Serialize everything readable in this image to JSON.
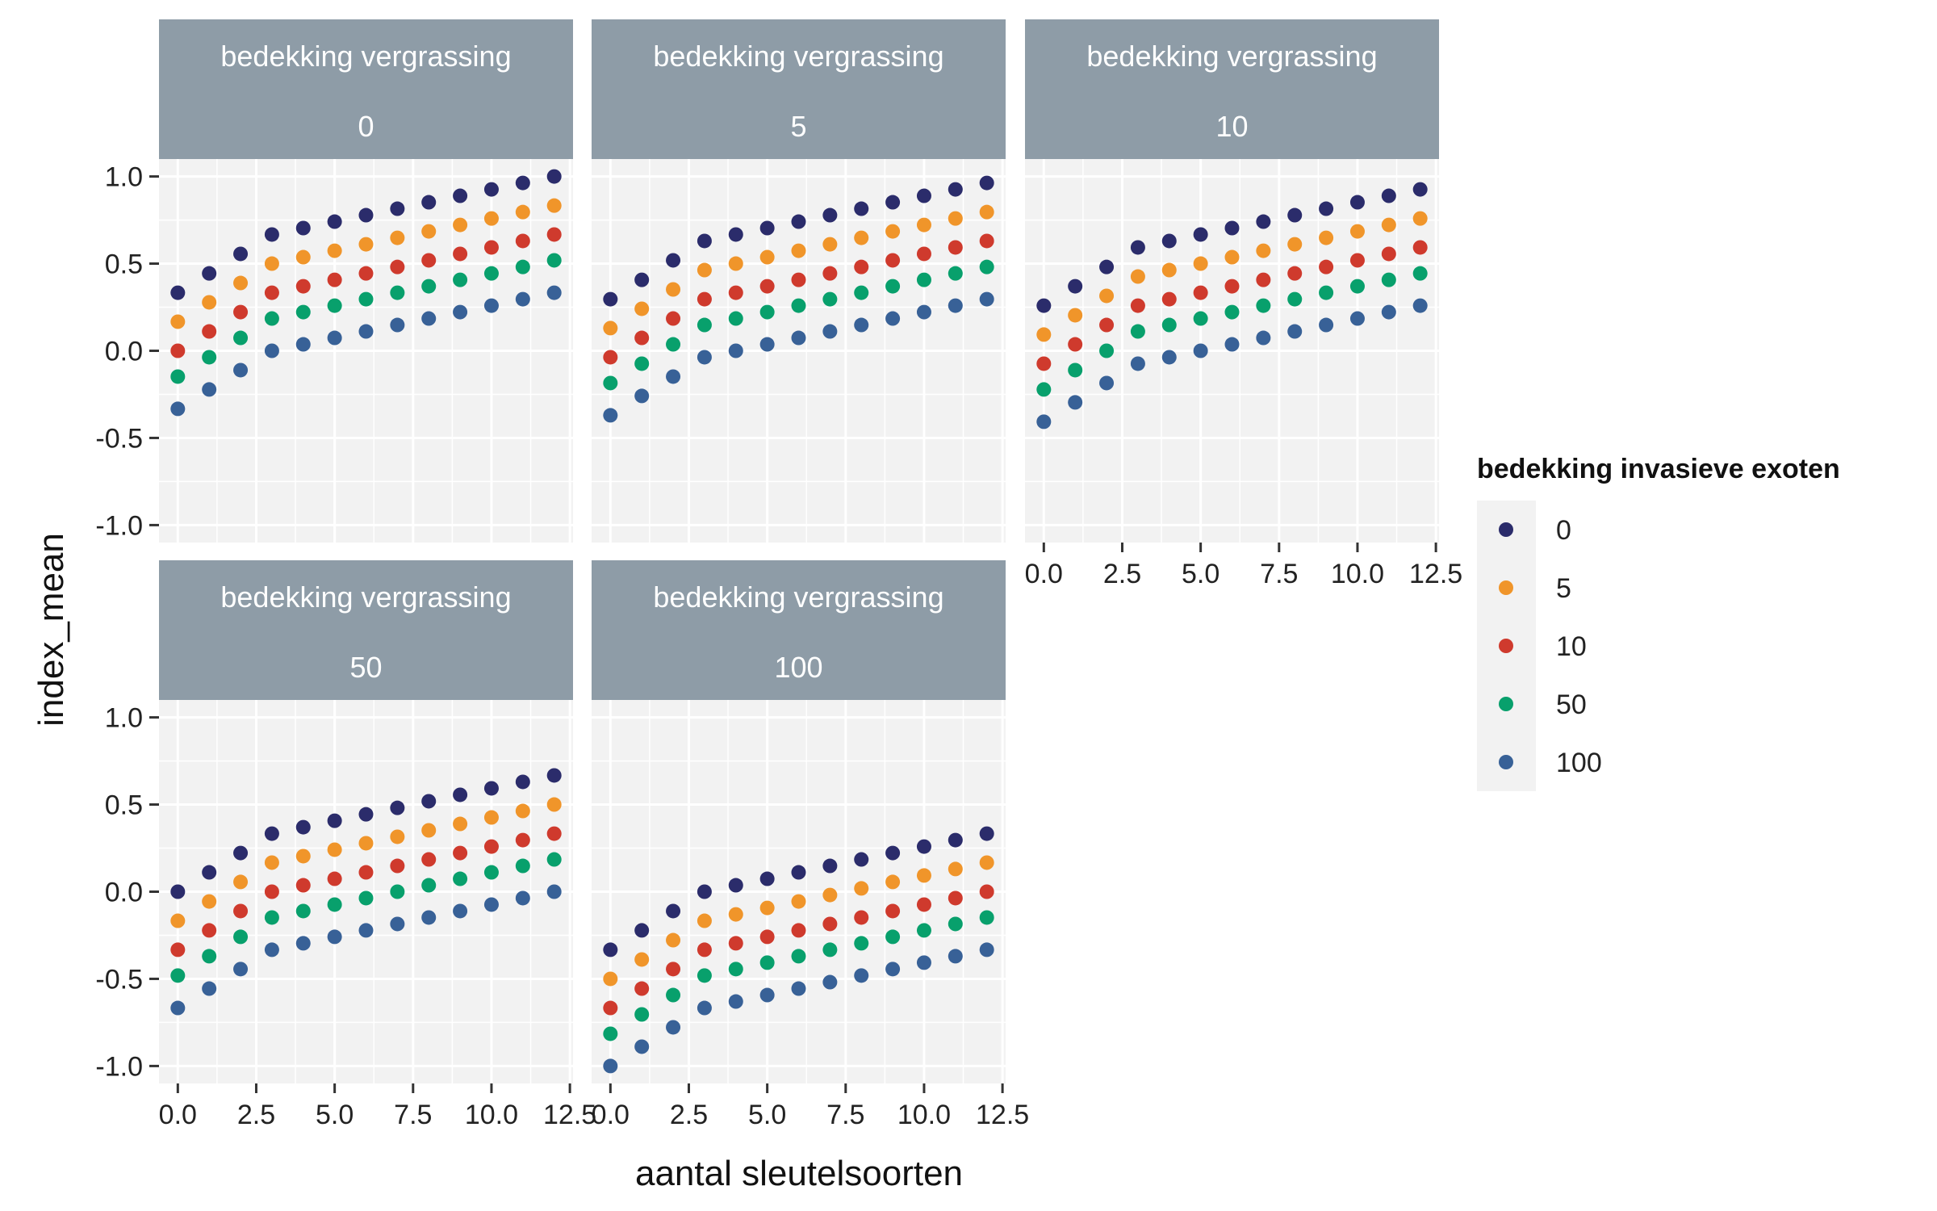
{
  "chart_data": {
    "type": "scatter",
    "facet_title": "bedekking vergrassing",
    "xlabel": "aantal sleutelsoorten",
    "ylabel": "index_mean",
    "xlim": [
      -0.6,
      12.6
    ],
    "ylim": [
      -1.1,
      1.1
    ],
    "x_ticks": [
      "0.0",
      "2.5",
      "5.0",
      "7.5",
      "10.0",
      "12.5"
    ],
    "y_ticks": [
      "1.0",
      "0.5",
      "0.0",
      "-0.5",
      "-1.0"
    ],
    "x": [
      0,
      1,
      2,
      3,
      4,
      5,
      6,
      7,
      8,
      9,
      10,
      11,
      12
    ],
    "legend": {
      "title": "bedekking invasieve exoten",
      "position": "right",
      "entries": [
        "0",
        "5",
        "10",
        "50",
        "100"
      ]
    },
    "colors": [
      "#2b2c6b",
      "#f0952a",
      "#cf3a2d",
      "#08a06c",
      "#386197"
    ],
    "panels": [
      {
        "strip": "0",
        "series": [
          {
            "name": "0",
            "values": [
              0.333,
              0.444,
              0.556,
              0.667,
              0.704,
              0.741,
              0.778,
              0.815,
              0.852,
              0.889,
              0.926,
              0.963,
              1.0
            ]
          },
          {
            "name": "5",
            "values": [
              0.167,
              0.278,
              0.389,
              0.5,
              0.537,
              0.574,
              0.611,
              0.648,
              0.685,
              0.722,
              0.759,
              0.796,
              0.833
            ]
          },
          {
            "name": "10",
            "values": [
              0.0,
              0.111,
              0.222,
              0.333,
              0.37,
              0.407,
              0.444,
              0.481,
              0.519,
              0.556,
              0.593,
              0.63,
              0.667
            ]
          },
          {
            "name": "50",
            "values": [
              -0.148,
              -0.037,
              0.074,
              0.185,
              0.222,
              0.259,
              0.296,
              0.333,
              0.37,
              0.407,
              0.444,
              0.481,
              0.519
            ]
          },
          {
            "name": "100",
            "values": [
              -0.333,
              -0.222,
              -0.111,
              0.0,
              0.037,
              0.074,
              0.111,
              0.148,
              0.185,
              0.222,
              0.259,
              0.296,
              0.333
            ]
          }
        ]
      },
      {
        "strip": "5",
        "series": [
          {
            "name": "0",
            "values": [
              0.296,
              0.407,
              0.519,
              0.63,
              0.667,
              0.704,
              0.741,
              0.778,
              0.815,
              0.852,
              0.889,
              0.926,
              0.963
            ]
          },
          {
            "name": "5",
            "values": [
              0.13,
              0.241,
              0.352,
              0.463,
              0.5,
              0.537,
              0.574,
              0.611,
              0.648,
              0.685,
              0.722,
              0.759,
              0.796
            ]
          },
          {
            "name": "10",
            "values": [
              -0.037,
              0.074,
              0.185,
              0.296,
              0.333,
              0.37,
              0.407,
              0.444,
              0.481,
              0.519,
              0.556,
              0.593,
              0.63
            ]
          },
          {
            "name": "50",
            "values": [
              -0.185,
              -0.074,
              0.037,
              0.148,
              0.185,
              0.222,
              0.259,
              0.296,
              0.333,
              0.37,
              0.407,
              0.444,
              0.481
            ]
          },
          {
            "name": "100",
            "values": [
              -0.37,
              -0.259,
              -0.148,
              -0.037,
              0.0,
              0.037,
              0.074,
              0.111,
              0.148,
              0.185,
              0.222,
              0.259,
              0.296
            ]
          }
        ]
      },
      {
        "strip": "10",
        "series": [
          {
            "name": "0",
            "values": [
              0.259,
              0.37,
              0.481,
              0.593,
              0.63,
              0.667,
              0.704,
              0.741,
              0.778,
              0.815,
              0.852,
              0.889,
              0.926
            ]
          },
          {
            "name": "5",
            "values": [
              0.093,
              0.204,
              0.315,
              0.426,
              0.463,
              0.5,
              0.537,
              0.574,
              0.611,
              0.648,
              0.685,
              0.722,
              0.759
            ]
          },
          {
            "name": "10",
            "values": [
              -0.074,
              0.037,
              0.148,
              0.259,
              0.296,
              0.333,
              0.37,
              0.407,
              0.444,
              0.481,
              0.519,
              0.556,
              0.593
            ]
          },
          {
            "name": "50",
            "values": [
              -0.222,
              -0.111,
              0.0,
              0.111,
              0.148,
              0.185,
              0.222,
              0.259,
              0.296,
              0.333,
              0.37,
              0.407,
              0.444
            ]
          },
          {
            "name": "100",
            "values": [
              -0.407,
              -0.296,
              -0.185,
              -0.074,
              -0.037,
              0.0,
              0.037,
              0.074,
              0.111,
              0.148,
              0.185,
              0.222,
              0.259
            ]
          }
        ]
      },
      {
        "strip": "50",
        "series": [
          {
            "name": "0",
            "values": [
              0.0,
              0.111,
              0.222,
              0.333,
              0.37,
              0.407,
              0.444,
              0.481,
              0.519,
              0.556,
              0.593,
              0.63,
              0.667
            ]
          },
          {
            "name": "5",
            "values": [
              -0.167,
              -0.056,
              0.056,
              0.167,
              0.204,
              0.241,
              0.278,
              0.315,
              0.352,
              0.389,
              0.426,
              0.463,
              0.5
            ]
          },
          {
            "name": "10",
            "values": [
              -0.333,
              -0.222,
              -0.111,
              0.0,
              0.037,
              0.074,
              0.111,
              0.148,
              0.185,
              0.222,
              0.259,
              0.296,
              0.333
            ]
          },
          {
            "name": "50",
            "values": [
              -0.481,
              -0.37,
              -0.259,
              -0.148,
              -0.111,
              -0.074,
              -0.037,
              0.0,
              0.037,
              0.074,
              0.111,
              0.148,
              0.185
            ]
          },
          {
            "name": "100",
            "values": [
              -0.667,
              -0.556,
              -0.444,
              -0.333,
              -0.296,
              -0.259,
              -0.222,
              -0.185,
              -0.148,
              -0.111,
              -0.074,
              -0.037,
              0.0
            ]
          }
        ]
      },
      {
        "strip": "100",
        "series": [
          {
            "name": "0",
            "values": [
              -0.333,
              -0.222,
              -0.111,
              0.0,
              0.037,
              0.074,
              0.111,
              0.148,
              0.185,
              0.222,
              0.259,
              0.296,
              0.333
            ]
          },
          {
            "name": "5",
            "values": [
              -0.5,
              -0.389,
              -0.278,
              -0.167,
              -0.13,
              -0.093,
              -0.056,
              -0.019,
              0.019,
              0.056,
              0.093,
              0.13,
              0.167
            ]
          },
          {
            "name": "10",
            "values": [
              -0.667,
              -0.556,
              -0.444,
              -0.333,
              -0.296,
              -0.259,
              -0.222,
              -0.185,
              -0.148,
              -0.111,
              -0.074,
              -0.037,
              0.0
            ]
          },
          {
            "name": "50",
            "values": [
              -0.815,
              -0.704,
              -0.593,
              -0.481,
              -0.444,
              -0.407,
              -0.37,
              -0.333,
              -0.296,
              -0.259,
              -0.222,
              -0.185,
              -0.148
            ]
          },
          {
            "name": "100",
            "values": [
              -1.0,
              -0.889,
              -0.778,
              -0.667,
              -0.63,
              -0.593,
              -0.556,
              -0.519,
              -0.481,
              -0.444,
              -0.407,
              -0.37,
              -0.333
            ]
          }
        ]
      }
    ]
  }
}
